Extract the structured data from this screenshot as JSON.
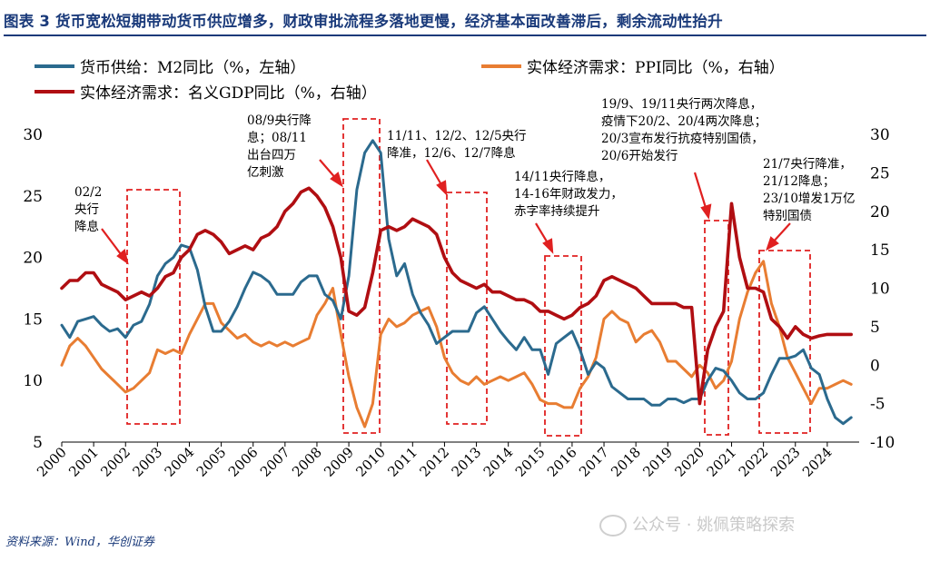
{
  "figure_title": "图表 3   货币宽松短期带动货币供应增多，财政审批流程多落地更慢，经济基本面改善滞后，剩余流动性抬升",
  "source": "资料来源：Wind，华创证券",
  "watermark": "公众号 · 姚佩策略探索",
  "colors": {
    "m2": "#2b6a8e",
    "ppi": "#e87d32",
    "gdp": "#b00e12",
    "box": "#e02020",
    "arrow": "#e02020",
    "title": "#1a3a7a"
  },
  "annotations": [
    {
      "lines": [
        "02/2",
        "央行",
        "降息"
      ]
    },
    {
      "lines": [
        "08/9央行降",
        "息；08/11",
        "出台四万",
        "亿刺激"
      ]
    },
    {
      "lines": [
        "11/11、12/2、12/5央行",
        "降准，12/6、12/7降息"
      ]
    },
    {
      "lines": [
        "14/11央行降息，",
        "14-16年财政发力，",
        "赤字率持续提升"
      ]
    },
    {
      "lines": [
        "19/9、19/11央行两次降息，",
        "疫情下20/2、20/4两次降息；",
        "20/3宣布发行抗疫特别国债，",
        "20/6开始发行"
      ]
    },
    {
      "lines": [
        "21/7央行降准，",
        "21/12降息；",
        "23/10增发1万亿",
        "特别国债"
      ]
    }
  ],
  "chart_data": {
    "type": "line",
    "xlim": [
      2000,
      2025
    ],
    "x_ticks": [
      "2000",
      "2001",
      "2002",
      "2003",
      "2004",
      "2005",
      "2006",
      "2007",
      "2008",
      "2009",
      "2010",
      "2011",
      "2012",
      "2013",
      "2014",
      "2015",
      "2016",
      "2017",
      "2018",
      "2019",
      "2020",
      "2021",
      "2022",
      "2023",
      "2024"
    ],
    "left_axis": {
      "lim": [
        5,
        30
      ],
      "ticks": [
        "5",
        "10",
        "15",
        "20",
        "25",
        "30"
      ]
    },
    "right_axis": {
      "lim": [
        -10,
        30
      ],
      "ticks": [
        "-10",
        "-5",
        "0",
        "5",
        "10",
        "15",
        "20",
        "25",
        "30"
      ]
    },
    "legend": [
      "货币供给：M2同比（%，左轴）",
      "实体经济需求：PPI同比（%，右轴）",
      "实体经济需求：名义GDP同比（%，右轴）"
    ],
    "series": [
      {
        "name": "货币供给：M2同比（%，左轴）",
        "axis": "left",
        "x": [
          2000.0,
          2000.25,
          2000.5,
          2000.75,
          2001.0,
          2001.25,
          2001.5,
          2001.75,
          2002.0,
          2002.25,
          2002.5,
          2002.75,
          2003.0,
          2003.25,
          2003.5,
          2003.75,
          2004.0,
          2004.25,
          2004.5,
          2004.75,
          2005.0,
          2005.25,
          2005.5,
          2005.75,
          2006.0,
          2006.25,
          2006.5,
          2006.75,
          2007.0,
          2007.25,
          2007.5,
          2007.75,
          2008.0,
          2008.25,
          2008.5,
          2008.75,
          2009.0,
          2009.25,
          2009.5,
          2009.75,
          2010.0,
          2010.25,
          2010.5,
          2010.75,
          2011.0,
          2011.25,
          2011.5,
          2011.75,
          2012.0,
          2012.25,
          2012.5,
          2012.75,
          2013.0,
          2013.25,
          2013.5,
          2013.75,
          2014.0,
          2014.25,
          2014.5,
          2014.75,
          2015.0,
          2015.25,
          2015.5,
          2015.75,
          2016.0,
          2016.25,
          2016.5,
          2016.75,
          2017.0,
          2017.25,
          2017.5,
          2017.75,
          2018.0,
          2018.25,
          2018.5,
          2018.75,
          2019.0,
          2019.25,
          2019.5,
          2019.75,
          2020.0,
          2020.25,
          2020.5,
          2020.75,
          2021.0,
          2021.25,
          2021.5,
          2021.75,
          2022.0,
          2022.25,
          2022.5,
          2022.75,
          2023.0,
          2023.25,
          2023.5,
          2023.75,
          2024.0,
          2024.25,
          2024.5,
          2024.75
        ],
        "values": [
          14.5,
          13.5,
          14.8,
          15.0,
          15.2,
          14.5,
          14.0,
          14.2,
          13.5,
          14.5,
          14.8,
          16.2,
          18.5,
          19.5,
          20.0,
          21.0,
          20.8,
          19.0,
          16.0,
          14.0,
          14.0,
          14.8,
          16.0,
          17.5,
          18.8,
          18.5,
          18.0,
          17.0,
          17.0,
          17.0,
          18.0,
          18.5,
          18.5,
          17.0,
          16.5,
          15.0,
          18.5,
          25.5,
          28.5,
          29.5,
          28.5,
          21.5,
          18.5,
          19.5,
          17.0,
          15.5,
          14.5,
          13.0,
          13.5,
          14.0,
          14.0,
          14.0,
          15.5,
          16.0,
          15.0,
          14.0,
          13.2,
          12.5,
          13.5,
          12.5,
          12.5,
          10.5,
          13.0,
          13.5,
          14.0,
          12.5,
          10.5,
          11.5,
          11.0,
          9.5,
          9.0,
          8.5,
          8.5,
          8.5,
          8.0,
          8.0,
          8.5,
          8.5,
          8.2,
          8.5,
          8.5,
          10.0,
          11.0,
          10.8,
          10.0,
          9.0,
          8.5,
          8.5,
          9.0,
          10.5,
          11.8,
          11.8,
          12.0,
          12.5,
          11.0,
          10.5,
          8.5,
          7.0,
          6.5,
          7.0
        ]
      },
      {
        "name": "实体经济需求：PPI同比（%，右轴）",
        "axis": "right",
        "x": [
          2000.0,
          2000.25,
          2000.5,
          2000.75,
          2001.0,
          2001.25,
          2001.5,
          2001.75,
          2002.0,
          2002.25,
          2002.5,
          2002.75,
          2003.0,
          2003.25,
          2003.5,
          2003.75,
          2004.0,
          2004.25,
          2004.5,
          2004.75,
          2005.0,
          2005.25,
          2005.5,
          2005.75,
          2006.0,
          2006.25,
          2006.5,
          2006.75,
          2007.0,
          2007.25,
          2007.5,
          2007.75,
          2008.0,
          2008.25,
          2008.5,
          2008.75,
          2009.0,
          2009.25,
          2009.5,
          2009.75,
          2010.0,
          2010.25,
          2010.5,
          2010.75,
          2011.0,
          2011.25,
          2011.5,
          2011.75,
          2012.0,
          2012.25,
          2012.5,
          2012.75,
          2013.0,
          2013.25,
          2013.5,
          2013.75,
          2014.0,
          2014.25,
          2014.5,
          2014.75,
          2015.0,
          2015.25,
          2015.5,
          2015.75,
          2016.0,
          2016.25,
          2016.5,
          2016.75,
          2017.0,
          2017.25,
          2017.5,
          2017.75,
          2018.0,
          2018.25,
          2018.5,
          2018.75,
          2019.0,
          2019.25,
          2019.5,
          2019.75,
          2020.0,
          2020.25,
          2020.5,
          2020.75,
          2021.0,
          2021.25,
          2021.5,
          2021.75,
          2022.0,
          2022.25,
          2022.5,
          2022.75,
          2023.0,
          2023.25,
          2023.5,
          2023.75,
          2024.0,
          2024.25,
          2024.5,
          2024.75
        ],
        "values": [
          0.0,
          2.5,
          3.5,
          2.5,
          1.0,
          -0.5,
          -1.5,
          -2.5,
          -3.5,
          -3.0,
          -2.0,
          -1.0,
          2.0,
          1.5,
          2.0,
          1.5,
          4.0,
          6.0,
          8.0,
          8.0,
          5.5,
          4.5,
          3.5,
          4.0,
          3.0,
          2.5,
          3.0,
          2.5,
          3.0,
          2.5,
          3.0,
          3.5,
          6.5,
          8.0,
          10.0,
          4.0,
          -1.5,
          -5.5,
          -8.0,
          -5.0,
          4.0,
          6.0,
          5.0,
          5.5,
          6.5,
          7.0,
          7.5,
          5.0,
          1.0,
          -1.0,
          -2.0,
          -2.5,
          -1.5,
          -2.5,
          -2.0,
          -1.5,
          -2.0,
          -1.5,
          -1.0,
          -2.5,
          -4.5,
          -5.0,
          -5.0,
          -5.5,
          -5.5,
          -3.0,
          -1.5,
          1.0,
          6.0,
          7.0,
          6.0,
          5.5,
          3.0,
          4.0,
          4.5,
          3.0,
          0.5,
          0.5,
          -0.5,
          -1.5,
          0.0,
          -1.0,
          -3.0,
          -2.0,
          0.5,
          6.0,
          9.5,
          12.0,
          13.5,
          8.0,
          5.0,
          1.0,
          -1.0,
          -3.0,
          -5.0,
          -3.0,
          -3.0,
          -2.5,
          -2.0,
          -2.5
        ]
      },
      {
        "name": "实体经济需求：名义GDP同比（%，右轴）",
        "axis": "right",
        "x": [
          2000.0,
          2000.25,
          2000.5,
          2000.75,
          2001.0,
          2001.25,
          2001.5,
          2001.75,
          2002.0,
          2002.25,
          2002.5,
          2002.75,
          2003.0,
          2003.25,
          2003.5,
          2003.75,
          2004.0,
          2004.25,
          2004.5,
          2004.75,
          2005.0,
          2005.25,
          2005.5,
          2005.75,
          2006.0,
          2006.25,
          2006.5,
          2006.75,
          2007.0,
          2007.25,
          2007.5,
          2007.75,
          2008.0,
          2008.25,
          2008.5,
          2008.75,
          2009.0,
          2009.25,
          2009.5,
          2009.75,
          2010.0,
          2010.25,
          2010.5,
          2010.75,
          2011.0,
          2011.25,
          2011.5,
          2011.75,
          2012.0,
          2012.25,
          2012.5,
          2012.75,
          2013.0,
          2013.25,
          2013.5,
          2013.75,
          2014.0,
          2014.25,
          2014.5,
          2014.75,
          2015.0,
          2015.25,
          2015.5,
          2015.75,
          2016.0,
          2016.25,
          2016.5,
          2016.75,
          2017.0,
          2017.25,
          2017.5,
          2017.75,
          2018.0,
          2018.25,
          2018.5,
          2018.75,
          2019.0,
          2019.25,
          2019.5,
          2019.75,
          2020.0,
          2020.25,
          2020.5,
          2020.75,
          2021.0,
          2021.25,
          2021.5,
          2021.75,
          2022.0,
          2022.25,
          2022.5,
          2022.75,
          2023.0,
          2023.25,
          2023.5,
          2023.75,
          2024.0,
          2024.25,
          2024.5,
          2024.75
        ],
        "values": [
          10.0,
          11.0,
          11.0,
          12.0,
          12.0,
          10.5,
          10.0,
          9.5,
          8.5,
          9.0,
          9.5,
          9.0,
          10.0,
          11.5,
          12.0,
          14.0,
          15.0,
          17.0,
          17.5,
          17.0,
          16.0,
          14.5,
          15.0,
          15.5,
          15.0,
          16.5,
          17.0,
          18.0,
          20.0,
          21.0,
          22.5,
          23.0,
          22.0,
          20.5,
          18.0,
          14.0,
          7.0,
          6.5,
          7.5,
          12.0,
          17.5,
          18.0,
          17.5,
          18.0,
          19.0,
          18.5,
          18.0,
          17.0,
          14.0,
          12.0,
          11.0,
          10.5,
          10.0,
          10.5,
          9.5,
          9.5,
          9.0,
          8.5,
          8.5,
          8.0,
          7.0,
          7.0,
          6.5,
          6.0,
          6.5,
          7.5,
          8.0,
          9.0,
          11.0,
          11.5,
          11.0,
          10.5,
          10.0,
          9.0,
          8.0,
          8.0,
          8.0,
          8.0,
          7.5,
          7.5,
          -5.0,
          2.0,
          5.0,
          7.0,
          21.0,
          14.0,
          10.0,
          10.0,
          9.5,
          6.0,
          5.0,
          3.5,
          5.0,
          4.0,
          3.5,
          3.8,
          4.0,
          4.0,
          4.0,
          4.0
        ]
      }
    ]
  }
}
